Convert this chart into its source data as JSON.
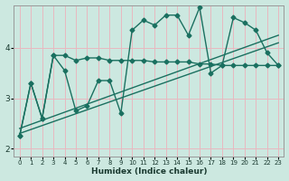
{
  "xlabel": "Humidex (Indice chaleur)",
  "bg_color": "#cce8e0",
  "grid_color": "#e8b8c0",
  "line_color": "#1a7060",
  "xlim": [
    -0.5,
    23.5
  ],
  "ylim": [
    1.85,
    4.85
  ],
  "yticks": [
    2,
    3,
    4
  ],
  "xticks": [
    0,
    1,
    2,
    3,
    4,
    5,
    6,
    7,
    8,
    9,
    10,
    11,
    12,
    13,
    14,
    15,
    16,
    17,
    18,
    19,
    20,
    21,
    22,
    23
  ],
  "line1_y": [
    2.25,
    3.3,
    2.6,
    3.85,
    3.55,
    2.75,
    2.85,
    3.35,
    3.35,
    2.7,
    4.35,
    4.55,
    4.45,
    4.65,
    4.65,
    4.25,
    4.8,
    3.5,
    3.65,
    4.6,
    4.5,
    4.35,
    3.9,
    3.65
  ],
  "line2_y": [
    2.25,
    3.3,
    2.6,
    3.85,
    3.85,
    3.75,
    3.8,
    3.8,
    3.75,
    3.75,
    3.75,
    3.75,
    3.72,
    3.72,
    3.72,
    3.72,
    3.68,
    3.68,
    3.65,
    3.65,
    3.65,
    3.65,
    3.65,
    3.65
  ],
  "trend1_x": [
    0,
    23
  ],
  "trend1_y": [
    2.4,
    4.25
  ],
  "trend2_x": [
    0,
    23
  ],
  "trend2_y": [
    2.3,
    4.1
  ]
}
